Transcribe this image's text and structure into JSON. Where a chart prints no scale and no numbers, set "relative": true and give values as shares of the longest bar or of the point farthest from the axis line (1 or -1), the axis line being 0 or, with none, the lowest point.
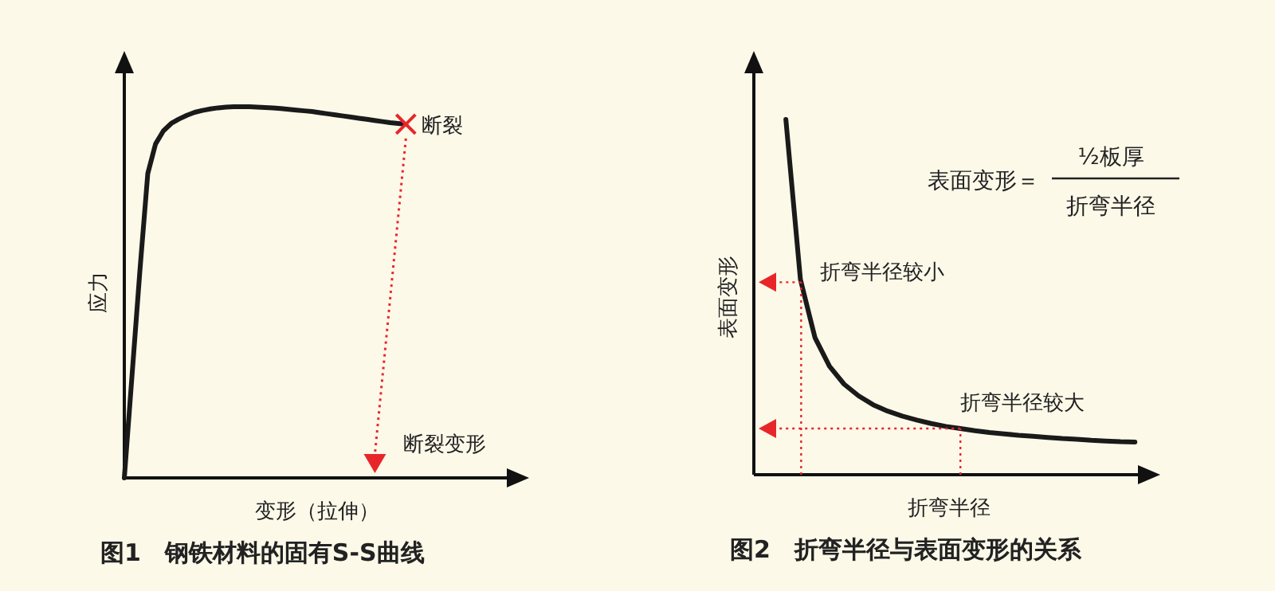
{
  "chart_data": [
    {
      "type": "line",
      "title": "图1　钢铁材料的固有S-S曲线",
      "xlabel": "变形（拉伸）",
      "ylabel": "应力",
      "relative": true,
      "categories": [
        null,
        null,
        null,
        null,
        null,
        null,
        null,
        null,
        null,
        null,
        null,
        null,
        null,
        null,
        null,
        null,
        null,
        null,
        null,
        null,
        null,
        null,
        null,
        null,
        null,
        null,
        null,
        null,
        null,
        null,
        null,
        null,
        null,
        null,
        null,
        null,
        null
      ],
      "series": [
        {
          "color": "#1a1a1a",
          "values": [
            0,
            0.28,
            0.56,
            0.82,
            0.9,
            0.935,
            0.955,
            0.967,
            0.977,
            0.985,
            0.99,
            0.994,
            0.997,
            0.999,
            1,
            1,
            1,
            0.999,
            0.998,
            0.997,
            0.995,
            0.993,
            0.991,
            0.989,
            0.987,
            0.984,
            0.981,
            0.978,
            0.975,
            0.972,
            0.969,
            0.966,
            0.963,
            0.96,
            0.957,
            0.955,
            0.953
          ]
        }
      ],
      "annotations": [
        "断裂",
        "断裂变形"
      ]
    },
    {
      "type": "line",
      "title": "图2　折弯半径与表面变形的关系",
      "xlabel": "折弯半径",
      "ylabel": "表面变形",
      "relative": true,
      "categories": [
        null,
        null,
        null,
        null,
        null,
        null,
        null,
        null,
        null,
        null,
        null,
        null,
        null,
        null,
        null,
        null,
        null,
        null,
        null,
        null,
        null,
        null,
        null,
        null,
        null
      ],
      "series": [
        {
          "color": "#1a1a1a",
          "values": [
            1,
            0.55,
            0.386,
            0.305,
            0.255,
            0.222,
            0.197,
            0.179,
            0.165,
            0.154,
            0.144,
            0.136,
            0.13,
            0.124,
            0.119,
            0.115,
            0.111,
            0.108,
            0.105,
            0.102,
            0.1,
            0.097,
            0.095,
            0.093,
            0.092
          ]
        }
      ],
      "annotations": [
        "表面变形＝",
        "½板厚",
        "折弯半径",
        "折弯半径较小",
        "折弯半径较大"
      ]
    }
  ]
}
